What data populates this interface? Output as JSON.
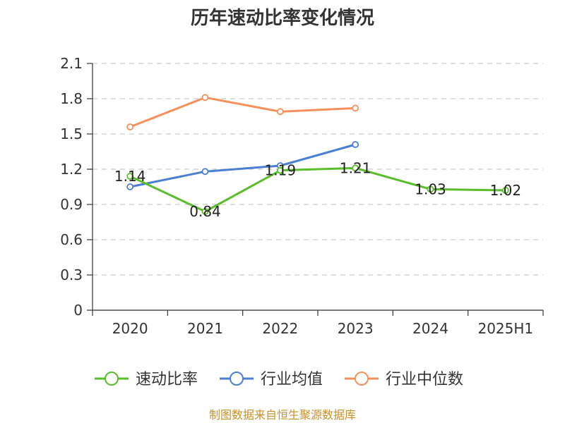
{
  "chart_data": {
    "type": "line",
    "title": "历年速动比率变化情况",
    "categories": [
      "2020",
      "2021",
      "2022",
      "2023",
      "2024",
      "2025H1"
    ],
    "y_ticks": [
      "0",
      "0.3",
      "0.6",
      "0.9",
      "1.2",
      "1.5",
      "1.8",
      "2.1"
    ],
    "ylim": [
      0,
      2.1
    ],
    "grid": true,
    "legend_position": "bottom",
    "series": [
      {
        "name": "速动比率",
        "color": "#5bbd2b",
        "values": [
          1.14,
          0.84,
          1.19,
          1.21,
          1.03,
          1.02
        ],
        "labels": [
          "1.14",
          "0.84",
          "1.19",
          "1.21",
          "1.03",
          "1.02"
        ]
      },
      {
        "name": "行业均值",
        "color": "#4a7fd4",
        "values": [
          1.05,
          1.18,
          1.23,
          1.41,
          null,
          null
        ]
      },
      {
        "name": "行业中位数",
        "color": "#f5905a",
        "values": [
          1.56,
          1.81,
          1.69,
          1.72,
          null,
          null
        ]
      }
    ],
    "source": "制图数据来自恒生聚源数据库"
  }
}
